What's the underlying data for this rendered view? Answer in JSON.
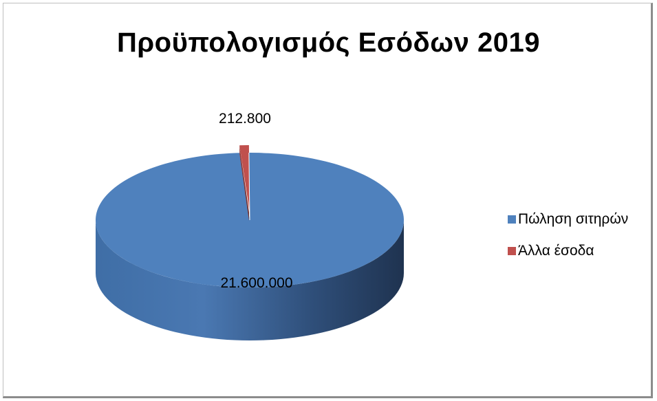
{
  "chart_data": {
    "type": "pie",
    "title": "Προϋπολογισμός Εσόδων 2019",
    "slices": [
      {
        "label": "Πώληση σιτηρών",
        "value": 21600000,
        "value_label": "21.600.000",
        "color": "#4f81bd"
      },
      {
        "label": "Άλλα έσοδα",
        "value": 212800,
        "value_label": "212.800",
        "color": "#c0504d"
      }
    ],
    "legend_position": "right",
    "style": "3d"
  }
}
